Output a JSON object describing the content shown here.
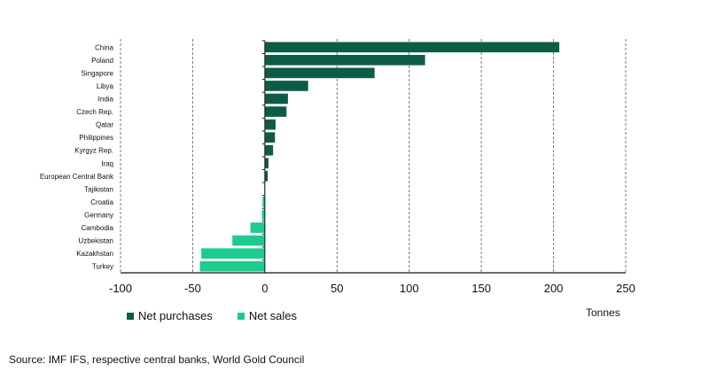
{
  "chart_data": {
    "type": "bar",
    "orientation": "horizontal",
    "categories": [
      "China",
      "Poland",
      "Singapore",
      "Libya",
      "India",
      "Czech Rep.",
      "Qatar",
      "Philippines",
      "Kyrgyz Rep.",
      "Iraq",
      "European Central Bank",
      "Tajikistan",
      "Croatia",
      "Germany",
      "Cambodia",
      "Uzbekistan",
      "Kazakhstan",
      "Turkey"
    ],
    "values": [
      204,
      111,
      76,
      30,
      16,
      15,
      7.4,
      7,
      5.7,
      2.5,
      2,
      -0.4,
      -1.6,
      -2,
      -10,
      -22.5,
      -44,
      -45
    ],
    "xlim": [
      -100,
      250
    ],
    "xticks": [
      -100,
      -50,
      0,
      50,
      100,
      150,
      200,
      250
    ],
    "xtick_labels": [
      "-100",
      "-50",
      "0",
      "50",
      "100",
      "150",
      "200",
      "250"
    ],
    "xlabel": "Tonnes",
    "grid": "vertical dashed",
    "legend": {
      "placement": "bottom",
      "entries": [
        {
          "name": "Net purchases",
          "color": "#0e5c48"
        },
        {
          "name": "Net sales",
          "color": "#1dcb8c"
        }
      ]
    }
  },
  "source": "Source: IMF IFS, respective central banks, World Gold Council"
}
